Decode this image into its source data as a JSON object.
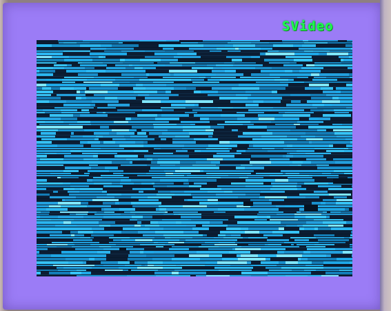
{
  "osd": {
    "input_label": "SVideo"
  },
  "colors": {
    "screen_background": "#9b7cf6",
    "osd_text": "#1bff4a",
    "noise_primary": "#1ea7e6",
    "noise_dark": "#0b1d33"
  }
}
